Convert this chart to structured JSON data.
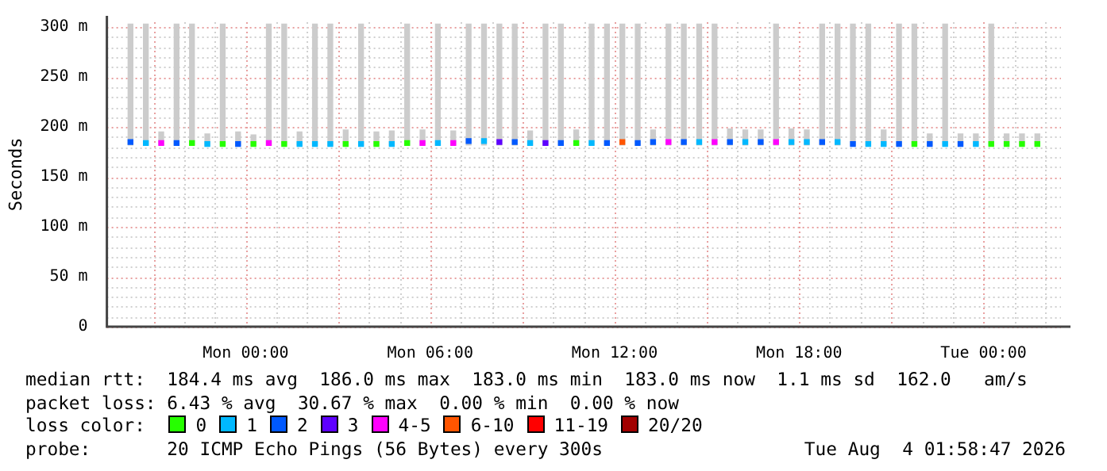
{
  "chart_data": {
    "type": "scatter",
    "marker": "square",
    "ylabel": "Seconds",
    "x": [
      "2026-08-02T20:15",
      "2026-08-02T20:45",
      "2026-08-02T21:15",
      "2026-08-02T21:45",
      "2026-08-02T22:15",
      "2026-08-02T22:45",
      "2026-08-02T23:15",
      "2026-08-02T23:45",
      "2026-08-03T00:15",
      "2026-08-03T00:45",
      "2026-08-03T01:15",
      "2026-08-03T01:45",
      "2026-08-03T02:15",
      "2026-08-03T02:45",
      "2026-08-03T03:15",
      "2026-08-03T03:45",
      "2026-08-03T04:15",
      "2026-08-03T04:45",
      "2026-08-03T05:15",
      "2026-08-03T05:45",
      "2026-08-03T06:15",
      "2026-08-03T06:45",
      "2026-08-03T07:15",
      "2026-08-03T07:45",
      "2026-08-03T08:15",
      "2026-08-03T08:45",
      "2026-08-03T09:15",
      "2026-08-03T09:45",
      "2026-08-03T10:15",
      "2026-08-03T10:45",
      "2026-08-03T11:15",
      "2026-08-03T11:45",
      "2026-08-03T12:15",
      "2026-08-03T12:45",
      "2026-08-03T13:15",
      "2026-08-03T13:45",
      "2026-08-03T14:15",
      "2026-08-03T14:45",
      "2026-08-03T15:15",
      "2026-08-03T15:45",
      "2026-08-03T16:15",
      "2026-08-03T16:45",
      "2026-08-03T17:15",
      "2026-08-03T17:45",
      "2026-08-03T18:15",
      "2026-08-03T18:45",
      "2026-08-03T19:15",
      "2026-08-03T19:45",
      "2026-08-03T20:15",
      "2026-08-03T20:45",
      "2026-08-03T21:15",
      "2026-08-03T21:45",
      "2026-08-03T22:15",
      "2026-08-03T22:45",
      "2026-08-03T23:15",
      "2026-08-03T23:45",
      "2026-08-04T00:15",
      "2026-08-04T00:45",
      "2026-08-04T01:15",
      "2026-08-04T01:45"
    ],
    "series": [
      {
        "type": "bar",
        "color": "#cccccc",
        "base": [
          182,
          182,
          182,
          182,
          182,
          182,
          182,
          182,
          182,
          182,
          182,
          182,
          182,
          182,
          182,
          182,
          182,
          182,
          182,
          182,
          182,
          182,
          182,
          182,
          182,
          182,
          182,
          182,
          182,
          182,
          182,
          182,
          182,
          182,
          182,
          182,
          182,
          182,
          182,
          182,
          182,
          182,
          182,
          182,
          182,
          182,
          182,
          182,
          182,
          182,
          182,
          182,
          182,
          182,
          182,
          182,
          182,
          182,
          182,
          182
        ],
        "values": [
          121,
          121,
          13,
          121,
          121,
          11,
          121,
          13,
          10,
          121,
          121,
          13,
          121,
          121,
          15,
          121,
          13,
          14,
          121,
          15,
          121,
          14,
          121,
          121,
          121,
          121,
          14,
          121,
          121,
          15,
          121,
          121,
          121,
          121,
          15,
          121,
          121,
          121,
          121,
          16,
          15,
          15,
          121,
          16,
          15,
          121,
          121,
          121,
          121,
          15,
          121,
          121,
          11,
          121,
          11,
          11,
          121,
          11,
          11,
          11
        ]
      },
      {
        "name": "0",
        "color": "#26ff00",
        "values": [
          null,
          null,
          null,
          null,
          184,
          null,
          183,
          null,
          183,
          null,
          183,
          null,
          null,
          null,
          183,
          null,
          183,
          null,
          184,
          null,
          null,
          null,
          null,
          null,
          null,
          null,
          null,
          null,
          null,
          184,
          null,
          null,
          null,
          null,
          null,
          null,
          null,
          null,
          null,
          null,
          null,
          null,
          null,
          null,
          null,
          null,
          null,
          null,
          null,
          null,
          null,
          183,
          null,
          null,
          null,
          null,
          183,
          183,
          183,
          183
        ]
      },
      {
        "name": "1",
        "color": "#00b8ff",
        "values": [
          null,
          184,
          null,
          null,
          null,
          183,
          null,
          null,
          null,
          null,
          null,
          183,
          183,
          183,
          null,
          183,
          null,
          183,
          null,
          null,
          184,
          null,
          null,
          186,
          null,
          null,
          184,
          null,
          null,
          null,
          184,
          null,
          null,
          null,
          null,
          null,
          null,
          185,
          null,
          null,
          185,
          null,
          null,
          185,
          185,
          null,
          185,
          null,
          183,
          183,
          null,
          null,
          null,
          183,
          null,
          183,
          null,
          null,
          null,
          null
        ]
      },
      {
        "name": "2",
        "color": "#0059ff",
        "values": [
          185,
          null,
          null,
          184,
          null,
          null,
          null,
          183,
          null,
          null,
          null,
          null,
          null,
          null,
          null,
          null,
          null,
          null,
          null,
          null,
          null,
          null,
          186,
          null,
          null,
          185,
          null,
          null,
          184,
          null,
          null,
          184,
          null,
          184,
          185,
          null,
          185,
          null,
          null,
          185,
          null,
          185,
          null,
          null,
          null,
          185,
          null,
          183,
          null,
          null,
          183,
          null,
          183,
          null,
          183,
          null,
          null,
          null,
          null,
          null
        ]
      },
      {
        "name": "3",
        "color": "#5e00ff",
        "values": [
          null,
          null,
          null,
          null,
          null,
          null,
          null,
          null,
          null,
          null,
          null,
          null,
          null,
          null,
          null,
          null,
          null,
          null,
          null,
          null,
          null,
          null,
          null,
          null,
          185,
          null,
          null,
          184,
          null,
          null,
          null,
          null,
          null,
          null,
          null,
          null,
          null,
          null,
          null,
          null,
          null,
          null,
          null,
          null,
          null,
          null,
          null,
          null,
          null,
          null,
          null,
          null,
          null,
          null,
          null,
          null,
          null,
          null,
          null,
          null
        ]
      },
      {
        "name": "4-5",
        "color": "#ff00fe",
        "values": [
          null,
          null,
          184,
          null,
          null,
          null,
          null,
          null,
          null,
          184,
          null,
          null,
          null,
          null,
          null,
          null,
          null,
          null,
          null,
          184,
          null,
          184,
          null,
          null,
          null,
          null,
          null,
          null,
          null,
          null,
          null,
          null,
          null,
          null,
          null,
          185,
          null,
          null,
          185,
          null,
          null,
          null,
          185,
          null,
          null,
          null,
          null,
          null,
          null,
          null,
          null,
          null,
          null,
          null,
          null,
          null,
          null,
          null,
          null,
          null
        ]
      },
      {
        "name": "6-10",
        "color": "#ff5500",
        "values": [
          null,
          null,
          null,
          null,
          null,
          null,
          null,
          null,
          null,
          null,
          null,
          null,
          null,
          null,
          null,
          null,
          null,
          null,
          null,
          null,
          null,
          null,
          null,
          null,
          null,
          null,
          null,
          null,
          null,
          null,
          null,
          null,
          185,
          null,
          null,
          null,
          null,
          null,
          null,
          null,
          null,
          null,
          null,
          null,
          null,
          null,
          null,
          null,
          null,
          null,
          null,
          null,
          null,
          null,
          null,
          null,
          null,
          null,
          null,
          null
        ]
      },
      {
        "name": "11-19",
        "color": "#ff0000",
        "values": [
          null,
          null,
          null,
          null,
          null,
          null,
          null,
          null,
          null,
          null,
          null,
          null,
          null,
          null,
          null,
          null,
          null,
          null,
          null,
          null,
          null,
          null,
          null,
          null,
          null,
          null,
          null,
          null,
          null,
          null,
          null,
          null,
          null,
          null,
          null,
          null,
          null,
          null,
          null,
          null,
          null,
          null,
          null,
          null,
          null,
          null,
          null,
          null,
          null,
          null,
          null,
          null,
          null,
          null,
          null,
          null,
          null,
          null,
          null,
          null
        ]
      },
      {
        "name": "20/20",
        "color": "#a10000",
        "values": [
          null,
          null,
          null,
          null,
          null,
          null,
          null,
          null,
          null,
          null,
          null,
          null,
          null,
          null,
          null,
          null,
          null,
          null,
          null,
          null,
          null,
          null,
          null,
          null,
          null,
          null,
          null,
          null,
          null,
          null,
          null,
          null,
          null,
          null,
          null,
          null,
          null,
          null,
          null,
          null,
          null,
          null,
          null,
          null,
          null,
          null,
          null,
          null,
          null,
          null,
          null,
          null,
          null,
          null,
          null,
          null,
          null,
          null,
          null,
          null
        ]
      }
    ],
    "xlim": [
      "2026-08-02T20:00",
      "2026-08-04T02:00"
    ],
    "xticks": [
      {
        "value": "2026-08-02T21:00",
        "label": null
      },
      {
        "value": "2026-08-02T22:00",
        "label": null
      },
      {
        "value": "2026-08-02T23:00",
        "label": null
      },
      {
        "value": "2026-08-03T00:00",
        "label": "Mon 00:00"
      },
      {
        "value": "2026-08-03T01:00",
        "label": null
      },
      {
        "value": "2026-08-03T02:00",
        "label": null
      },
      {
        "value": "2026-08-03T03:00",
        "label": null
      },
      {
        "value": "2026-08-03T04:00",
        "label": null
      },
      {
        "value": "2026-08-03T05:00",
        "label": null
      },
      {
        "value": "2026-08-03T06:00",
        "label": "Mon 06:00"
      },
      {
        "value": "2026-08-03T07:00",
        "label": null
      },
      {
        "value": "2026-08-03T08:00",
        "label": null
      },
      {
        "value": "2026-08-03T09:00",
        "label": null
      },
      {
        "value": "2026-08-03T10:00",
        "label": null
      },
      {
        "value": "2026-08-03T11:00",
        "label": null
      },
      {
        "value": "2026-08-03T12:00",
        "label": "Mon 12:00"
      },
      {
        "value": "2026-08-03T13:00",
        "label": null
      },
      {
        "value": "2026-08-03T14:00",
        "label": null
      },
      {
        "value": "2026-08-03T15:00",
        "label": null
      },
      {
        "value": "2026-08-03T16:00",
        "label": null
      },
      {
        "value": "2026-08-03T17:00",
        "label": null
      },
      {
        "value": "2026-08-03T18:00",
        "label": "Mon 18:00"
      },
      {
        "value": "2026-08-03T19:00",
        "label": null
      },
      {
        "value": "2026-08-03T20:00",
        "label": null
      },
      {
        "value": "2026-08-03T21:00",
        "label": null
      },
      {
        "value": "2026-08-03T22:00",
        "label": null
      },
      {
        "value": "2026-08-03T23:00",
        "label": null
      },
      {
        "value": "2026-08-04T00:00",
        "label": "Tue 00:00"
      },
      {
        "value": "2026-08-04T01:00",
        "label": null
      },
      {
        "value": "2026-08-04T02:00",
        "label": null
      }
    ],
    "ylim": [
      0,
      305
    ],
    "yticks": [
      0,
      {
        "value": 10,
        "label": null
      },
      {
        "value": 20,
        "label": null
      },
      {
        "value": 30,
        "label": null
      },
      {
        "value": 40,
        "label": null
      },
      {
        "value": 50,
        "label": "50 m"
      },
      {
        "value": 60,
        "label": null
      },
      {
        "value": 70,
        "label": null
      },
      {
        "value": 80,
        "label": null
      },
      {
        "value": 90,
        "label": null
      },
      {
        "value": 100,
        "label": "100 m"
      },
      {
        "value": 110,
        "label": null
      },
      {
        "value": 120,
        "label": null
      },
      {
        "value": 130,
        "label": null
      },
      {
        "value": 140,
        "label": null
      },
      {
        "value": 150,
        "label": "150 m"
      },
      {
        "value": 160,
        "label": null
      },
      {
        "value": 170,
        "label": null
      },
      {
        "value": 180,
        "label": null
      },
      {
        "value": 190,
        "label": null
      },
      {
        "value": 200,
        "label": "200 m"
      },
      {
        "value": 210,
        "label": null
      },
      {
        "value": 220,
        "label": null
      },
      {
        "value": 230,
        "label": null
      },
      {
        "value": 240,
        "label": null
      },
      {
        "value": 250,
        "label": "250 m"
      },
      {
        "value": 260,
        "label": null
      },
      {
        "value": 270,
        "label": null
      },
      {
        "value": 280,
        "label": null
      },
      {
        "value": 290,
        "label": null
      },
      {
        "value": 300,
        "label": "300 m"
      }
    ],
    "grid": true,
    "legend": "bottom",
    "legend_title": "loss color:",
    "annotations": [
      "median rtt:  184.4 ms avg  186.0 ms max  183.0 ms min  183.0 ms now  1.1 ms sd  162.0   am/s",
      "packet loss: 6.43 % avg  30.67 % max  0.00 % min  0.00 % now",
      "probe:       20 ICMP Echo Pings (56 Bytes) every 300s",
      "Tue Aug  4 01:58:47 2026"
    ]
  }
}
